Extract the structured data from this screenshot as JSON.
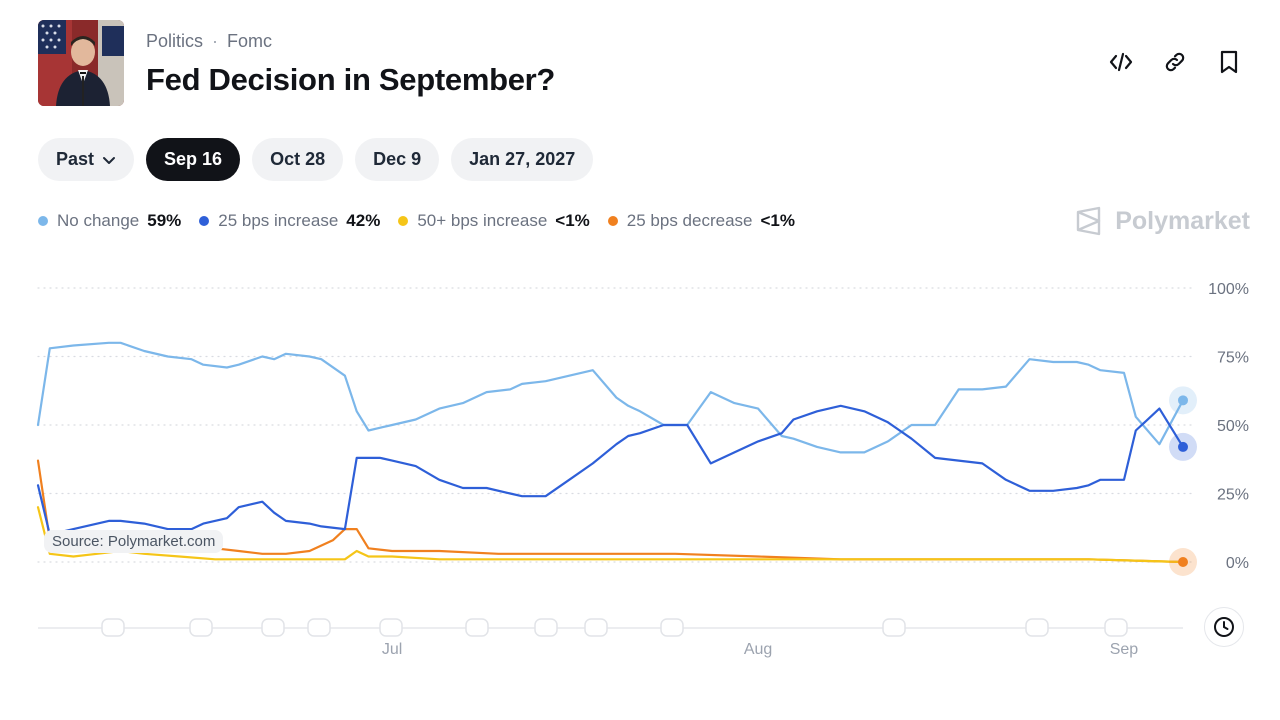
{
  "header": {
    "category": "Politics",
    "separator": "·",
    "subcategory": "Fomc",
    "title": "Fed Decision in September?"
  },
  "actions": [
    {
      "name": "embed-icon"
    },
    {
      "name": "link-icon"
    },
    {
      "name": "bookmark-icon"
    }
  ],
  "tabs": [
    {
      "label": "Past",
      "icon": "chevron-down-icon",
      "active": false
    },
    {
      "label": "Sep 16",
      "active": true
    },
    {
      "label": "Oct 28",
      "active": false
    },
    {
      "label": "Dec 9",
      "active": false
    },
    {
      "label": "Jan 27, 2027",
      "active": false
    }
  ],
  "legend": [
    {
      "name": "No change",
      "value": "59%",
      "color": "#7cb7ea"
    },
    {
      "name": "25 bps increase",
      "value": "42%",
      "color": "#2e5fd8"
    },
    {
      "name": "50+ bps increase",
      "value": "<1%",
      "color": "#f5c518"
    },
    {
      "name": "25 bps decrease",
      "value": "<1%",
      "color": "#f0801f"
    }
  ],
  "brand": "Polymarket",
  "source": "Source: Polymarket.com",
  "chart_data": {
    "type": "line",
    "x_range": [
      "2026-06-01",
      "2026-09-06"
    ],
    "ylim": [
      0,
      100
    ],
    "y_ticks": [
      100,
      75,
      50,
      25,
      0
    ],
    "y_tick_labels": [
      "100%",
      "75%",
      "50%",
      "25%",
      "0%"
    ],
    "x_tick_labels": [
      {
        "label": "Jul",
        "x": "2026-07-01"
      },
      {
        "label": "Aug",
        "x": "2026-08-01"
      },
      {
        "label": "Sep",
        "x": "2026-09-01"
      }
    ],
    "grid": true,
    "legend_position": "top-left",
    "series": [
      {
        "name": "No change",
        "color": "#7cb7ea",
        "x": [
          "2026-06-01",
          "2026-06-02",
          "2026-06-04",
          "2026-06-07",
          "2026-06-08",
          "2026-06-10",
          "2026-06-12",
          "2026-06-14",
          "2026-06-15",
          "2026-06-17",
          "2026-06-18",
          "2026-06-20",
          "2026-06-21",
          "2026-06-22",
          "2026-06-24",
          "2026-06-25",
          "2026-06-27",
          "2026-06-28",
          "2026-06-29",
          "2026-06-30",
          "2026-07-01",
          "2026-07-03",
          "2026-07-05",
          "2026-07-07",
          "2026-07-09",
          "2026-07-11",
          "2026-07-12",
          "2026-07-14",
          "2026-07-16",
          "2026-07-18",
          "2026-07-20",
          "2026-07-21",
          "2026-07-22",
          "2026-07-24",
          "2026-07-26",
          "2026-07-28",
          "2026-07-30",
          "2026-08-01",
          "2026-08-03",
          "2026-08-04",
          "2026-08-06",
          "2026-08-08",
          "2026-08-10",
          "2026-08-12",
          "2026-08-14",
          "2026-08-16",
          "2026-08-18",
          "2026-08-20",
          "2026-08-22",
          "2026-08-24",
          "2026-08-26",
          "2026-08-28",
          "2026-08-29",
          "2026-08-30",
          "2026-09-01",
          "2026-09-02",
          "2026-09-04",
          "2026-09-06"
        ],
        "values": [
          50,
          78,
          79,
          80,
          80,
          77,
          75,
          74,
          72,
          71,
          72,
          75,
          74,
          76,
          75,
          74,
          68,
          55,
          48,
          49,
          50,
          52,
          56,
          58,
          62,
          63,
          65,
          66,
          68,
          70,
          60,
          57,
          55,
          50,
          50,
          62,
          58,
          56,
          46,
          45,
          42,
          40,
          40,
          44,
          50,
          50,
          63,
          63,
          64,
          74,
          73,
          73,
          72,
          70,
          69,
          53,
          43,
          59
        ]
      },
      {
        "name": "25 bps increase",
        "color": "#2e5fd8",
        "x": [
          "2026-06-01",
          "2026-06-02",
          "2026-06-04",
          "2026-06-07",
          "2026-06-08",
          "2026-06-10",
          "2026-06-12",
          "2026-06-14",
          "2026-06-15",
          "2026-06-17",
          "2026-06-18",
          "2026-06-20",
          "2026-06-21",
          "2026-06-22",
          "2026-06-24",
          "2026-06-25",
          "2026-06-27",
          "2026-06-28",
          "2026-06-29",
          "2026-06-30",
          "2026-07-01",
          "2026-07-03",
          "2026-07-05",
          "2026-07-07",
          "2026-07-09",
          "2026-07-11",
          "2026-07-12",
          "2026-07-14",
          "2026-07-16",
          "2026-07-18",
          "2026-07-20",
          "2026-07-21",
          "2026-07-22",
          "2026-07-24",
          "2026-07-26",
          "2026-07-28",
          "2026-07-30",
          "2026-08-01",
          "2026-08-03",
          "2026-08-04",
          "2026-08-06",
          "2026-08-08",
          "2026-08-10",
          "2026-08-12",
          "2026-08-14",
          "2026-08-16",
          "2026-08-18",
          "2026-08-20",
          "2026-08-22",
          "2026-08-24",
          "2026-08-26",
          "2026-08-28",
          "2026-08-29",
          "2026-08-30",
          "2026-09-01",
          "2026-09-02",
          "2026-09-04",
          "2026-09-06"
        ],
        "values": [
          28,
          10,
          12,
          15,
          15,
          14,
          12,
          12,
          14,
          16,
          20,
          22,
          18,
          15,
          14,
          13,
          12,
          38,
          38,
          38,
          37,
          35,
          30,
          27,
          27,
          25,
          24,
          24,
          30,
          36,
          43,
          46,
          47,
          50,
          50,
          36,
          40,
          44,
          47,
          52,
          55,
          57,
          55,
          51,
          45,
          38,
          37,
          36,
          30,
          26,
          26,
          27,
          28,
          30,
          30,
          48,
          56,
          42
        ]
      },
      {
        "name": "50+ bps increase",
        "color": "#f5c518",
        "x": [
          "2026-06-01",
          "2026-06-02",
          "2026-06-04",
          "2026-06-06",
          "2026-06-08",
          "2026-06-10",
          "2026-06-13",
          "2026-06-16",
          "2026-06-20",
          "2026-06-24",
          "2026-06-27",
          "2026-06-28",
          "2026-06-29",
          "2026-07-01",
          "2026-07-05",
          "2026-07-10",
          "2026-07-15",
          "2026-07-20",
          "2026-07-25",
          "2026-08-01",
          "2026-08-08",
          "2026-08-15",
          "2026-08-22",
          "2026-08-29",
          "2026-09-06"
        ],
        "values": [
          20,
          3,
          2,
          3,
          4,
          3,
          2,
          1,
          1,
          1,
          1,
          4,
          2,
          2,
          1,
          1,
          1,
          1,
          1,
          1,
          1,
          1,
          1,
          1,
          0
        ]
      },
      {
        "name": "25 bps decrease",
        "color": "#f0801f",
        "x": [
          "2026-06-01",
          "2026-06-02",
          "2026-06-04",
          "2026-06-06",
          "2026-06-08",
          "2026-06-10",
          "2026-06-13",
          "2026-06-16",
          "2026-06-18",
          "2026-06-20",
          "2026-06-22",
          "2026-06-24",
          "2026-06-26",
          "2026-06-27",
          "2026-06-28",
          "2026-06-29",
          "2026-07-01",
          "2026-07-05",
          "2026-07-10",
          "2026-07-15",
          "2026-07-20",
          "2026-07-25",
          "2026-08-01",
          "2026-08-08",
          "2026-08-15",
          "2026-08-22",
          "2026-08-29",
          "2026-09-06"
        ],
        "values": [
          37,
          8,
          7,
          8,
          9,
          8,
          7,
          5,
          4,
          3,
          3,
          4,
          8,
          12,
          12,
          5,
          4,
          4,
          3,
          3,
          3,
          3,
          2,
          1,
          1,
          1,
          1,
          0
        ]
      }
    ]
  }
}
